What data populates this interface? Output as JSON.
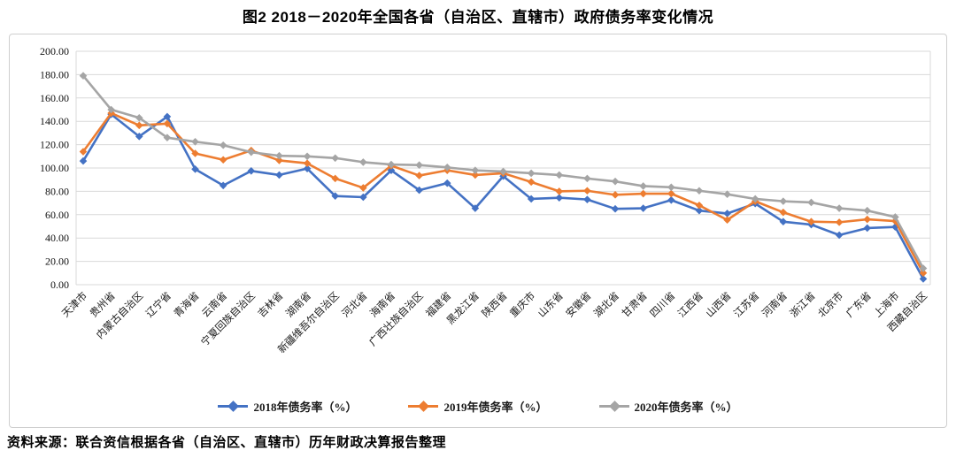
{
  "title": "图2 2018－2020年全国各省（自治区、直辖市）政府债务率变化情况",
  "source": "资料来源：联合资信根据各省（自治区、直辖市）历年财政决算报告整理",
  "chart_data": {
    "type": "line",
    "title": "图2 2018－2020年全国各省（自治区、直辖市）政府债务率变化情况",
    "categories": [
      "天津市",
      "贵州省",
      "内蒙古自治区",
      "辽宁省",
      "青海省",
      "云南省",
      "宁夏回族自治区",
      "吉林省",
      "湖南省",
      "新疆维吾尔自治区",
      "河北省",
      "海南省",
      "广西壮族自治区",
      "福建省",
      "黑龙江省",
      "陕西省",
      "重庆市",
      "山东省",
      "安徽省",
      "湖北省",
      "甘肃省",
      "四川省",
      "江西省",
      "山西省",
      "江苏省",
      "河南省",
      "浙江省",
      "北京市",
      "广东省",
      "上海市",
      "西藏自治区"
    ],
    "series": [
      {
        "name": "2018年债务率（%）",
        "color": "#4472C4",
        "marker": "diamond",
        "values": [
          106,
          146,
          127,
          144,
          99,
          85,
          97.5,
          94,
          99.5,
          76,
          75,
          98,
          81,
          87,
          65.5,
          93,
          73.5,
          74.5,
          73,
          65,
          65.5,
          72.5,
          63.5,
          61,
          69.5,
          54,
          51.5,
          42.5,
          48.5,
          49.5,
          5
        ]
      },
      {
        "name": "2019年债务率（%）",
        "color": "#ED7D31",
        "marker": "diamond",
        "values": [
          114,
          147,
          136.5,
          138,
          112.5,
          107,
          115,
          106.5,
          104,
          91,
          83,
          102,
          93.5,
          98,
          94,
          95.5,
          88,
          80,
          80.5,
          77,
          78,
          78,
          68,
          55.5,
          71.5,
          62,
          54,
          53.5,
          56,
          54.5,
          10
        ]
      },
      {
        "name": "2020年债务率（%）",
        "color": "#A5A5A5",
        "marker": "diamond",
        "values": [
          179,
          150,
          143,
          126,
          122.5,
          119.5,
          113.5,
          110.5,
          110,
          108.5,
          105,
          103,
          102.5,
          100.5,
          98,
          97,
          95.5,
          94,
          91,
          88.5,
          84.5,
          83.5,
          80.5,
          77.5,
          73.5,
          71.5,
          70.5,
          65.5,
          63.5,
          58,
          14
        ]
      }
    ],
    "ylim": [
      0,
      200
    ],
    "ytick_step": 20,
    "ytick_labels": [
      "0.00",
      "20.00",
      "40.00",
      "60.00",
      "80.00",
      "100.00",
      "120.00",
      "140.00",
      "160.00",
      "180.00",
      "200.00"
    ],
    "grid": "horizontal",
    "gridline_color": "#d9d9d9",
    "legend_position": "bottom",
    "x_label_rotation": -45
  }
}
